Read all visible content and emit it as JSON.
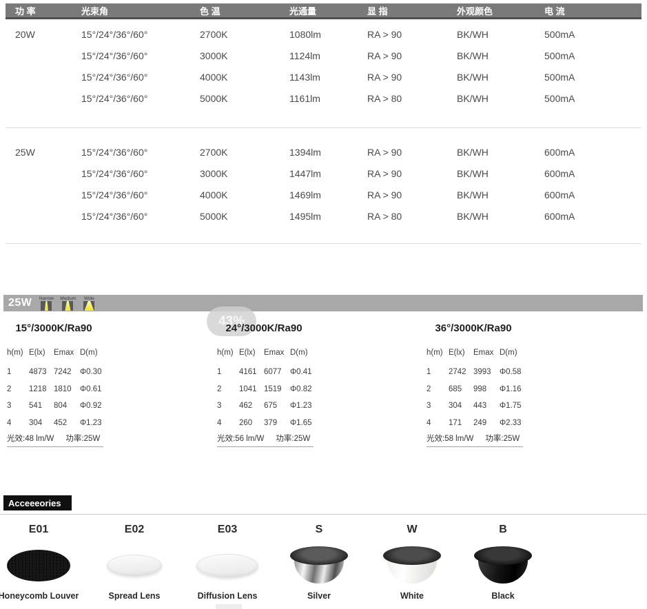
{
  "spec_table": {
    "headers": [
      "功 率",
      "光束角",
      "色 温",
      "光通量",
      "显 指",
      "外观颜色",
      "电 流"
    ],
    "groups": [
      {
        "power": "20W",
        "rows": [
          {
            "beam": "15°/24°/36°/60°",
            "cct": "2700K",
            "flux": "1080lm",
            "cri": "RA > 90",
            "finish": "BK/WH",
            "current": "500mA"
          },
          {
            "beam": "15°/24°/36°/60°",
            "cct": "3000K",
            "flux": "1124lm",
            "cri": "RA > 90",
            "finish": "BK/WH",
            "current": "500mA"
          },
          {
            "beam": "15°/24°/36°/60°",
            "cct": "4000K",
            "flux": "1143lm",
            "cri": "RA > 90",
            "finish": "BK/WH",
            "current": "500mA"
          },
          {
            "beam": "15°/24°/36°/60°",
            "cct": "5000K",
            "flux": "1161lm",
            "cri": "RA > 80",
            "finish": "BK/WH",
            "current": "500mA"
          }
        ]
      },
      {
        "power": "25W",
        "rows": [
          {
            "beam": "15°/24°/36°/60°",
            "cct": "2700K",
            "flux": "1394lm",
            "cri": "RA > 90",
            "finish": "BK/WH",
            "current": "600mA"
          },
          {
            "beam": "15°/24°/36°/60°",
            "cct": "3000K",
            "flux": "1447lm",
            "cri": "RA > 90",
            "finish": "BK/WH",
            "current": "600mA"
          },
          {
            "beam": "15°/24°/36°/60°",
            "cct": "4000K",
            "flux": "1469lm",
            "cri": "RA > 90",
            "finish": "BK/WH",
            "current": "600mA"
          },
          {
            "beam": "15°/24°/36°/60°",
            "cct": "5000K",
            "flux": "1495lm",
            "cri": "RA > 80",
            "finish": "BK/WH",
            "current": "600mA"
          }
        ]
      }
    ]
  },
  "photometry": {
    "bar_label": "25W",
    "beam_icons": [
      {
        "label": "Narrow",
        "style": "beam-narrow"
      },
      {
        "label": "Medium",
        "style": "beam-medium"
      },
      {
        "label": "Wide",
        "style": "beam-wide"
      }
    ],
    "zoom_percent": "43%",
    "columns": [
      "h(m)",
      "E(lx)",
      "Emax",
      "D(m)"
    ],
    "tables": [
      {
        "title": "15°/3000K/Ra90",
        "rows": [
          [
            "1",
            "4873",
            "7242",
            "Φ0.30"
          ],
          [
            "2",
            "1218",
            "1810",
            "Φ0.61"
          ],
          [
            "3",
            "541",
            "804",
            "Φ0.92"
          ],
          [
            "4",
            "304",
            "452",
            "Φ1.23"
          ]
        ],
        "efficacy": "光效:48 lm/W",
        "power": "功率:25W"
      },
      {
        "title": "24°/3000K/Ra90",
        "rows": [
          [
            "1",
            "4161",
            "6077",
            "Φ0.41"
          ],
          [
            "2",
            "1041",
            "1519",
            "Φ0.82"
          ],
          [
            "3",
            "462",
            "675",
            "Φ1.23"
          ],
          [
            "4",
            "260",
            "379",
            "Φ1.65"
          ]
        ],
        "efficacy": "光效:56 lm/W",
        "power": "功率:25W"
      },
      {
        "title": "36°/3000K/Ra90",
        "rows": [
          [
            "1",
            "2742",
            "3993",
            "Φ0.58"
          ],
          [
            "2",
            "685",
            "998",
            "Φ1.16"
          ],
          [
            "3",
            "304",
            "443",
            "Φ1.75"
          ],
          [
            "4",
            "171",
            "249",
            "Φ2.33"
          ]
        ],
        "efficacy": "光效:58 lm/W",
        "power": "功率:25W"
      }
    ]
  },
  "accessories": {
    "title": "Acceeeories",
    "items": [
      {
        "code": "E01",
        "name": "Honeycomb Louver",
        "shape": "honeycomb"
      },
      {
        "code": "E02",
        "name": "Spread Lens",
        "shape": "lens-spread"
      },
      {
        "code": "E03",
        "name": "Diffusion Lens",
        "shape": "lens-diffusion"
      },
      {
        "code": "S",
        "name": "Silver",
        "shape": "refl-silver"
      },
      {
        "code": "W",
        "name": "White",
        "shape": "refl-white"
      },
      {
        "code": "B",
        "name": "Black",
        "shape": "refl-black"
      }
    ]
  },
  "colors": {
    "header_bar": "#7a7a7a",
    "power_bar": "#a8a8a8",
    "beam_yellow": "#efe23e",
    "badge_black": "#101010"
  }
}
